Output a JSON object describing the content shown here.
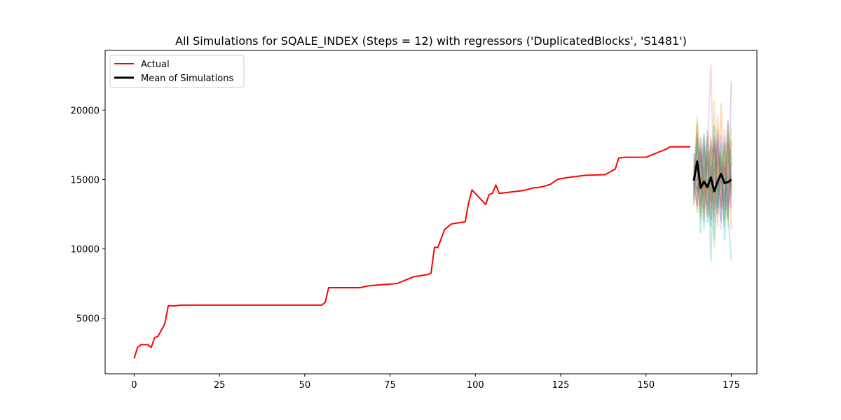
{
  "chart_data": {
    "type": "line",
    "title": "All Simulations for SQALE_INDEX (Steps = 12) with regressors ('DuplicatedBlocks', 'S1481')",
    "xlabel": "",
    "ylabel": "",
    "xlim": [
      -8.5,
      182.5
    ],
    "ylim": [
      1000,
      24300
    ],
    "xticks": [
      0,
      25,
      50,
      75,
      100,
      125,
      150,
      175
    ],
    "yticks": [
      5000,
      10000,
      15000,
      20000
    ],
    "grid": false,
    "legend": {
      "position": "top-left",
      "entries": [
        "Actual",
        "Mean of Simulations"
      ]
    },
    "series": [
      {
        "name": "Actual",
        "color": "#ff0000",
        "x": [
          0,
          1,
          2,
          3,
          4,
          5,
          6,
          7,
          9,
          10,
          12,
          14,
          25,
          55,
          56,
          57,
          63,
          66,
          69,
          77,
          78,
          82,
          86,
          87,
          88,
          89,
          91,
          93,
          97,
          98,
          99,
          103,
          104,
          105,
          106,
          107,
          114,
          117,
          118,
          120,
          122,
          124,
          126,
          132,
          138,
          141,
          142,
          144,
          150,
          155,
          156,
          157,
          163
        ],
        "y": [
          2100,
          2900,
          3100,
          3100,
          3100,
          2900,
          3600,
          3700,
          4600,
          5900,
          5900,
          5950,
          5950,
          5950,
          6150,
          7200,
          7200,
          7200,
          7350,
          7500,
          7600,
          8000,
          8150,
          8250,
          10100,
          10100,
          11400,
          11800,
          11950,
          13300,
          14250,
          13200,
          13900,
          14000,
          14600,
          14000,
          14200,
          14400,
          14400,
          14500,
          14650,
          15000,
          15100,
          15300,
          15350,
          15750,
          16550,
          16600,
          16600,
          17100,
          17200,
          17350,
          17350
        ]
      },
      {
        "name": "Mean of Simulations",
        "color": "#000000",
        "x": [
          164,
          165,
          166,
          167,
          168,
          169,
          170,
          171,
          172,
          173,
          174,
          175
        ],
        "y": [
          14900,
          16300,
          14400,
          14850,
          14450,
          15150,
          14150,
          14850,
          15400,
          14750,
          14800,
          15000
        ]
      }
    ],
    "simulations": {
      "x": [
        164,
        165,
        166,
        167,
        168,
        169,
        170,
        171,
        172,
        173,
        174,
        175
      ],
      "paths": [
        {
          "color": "#1f77b4",
          "values": [
            15200,
            17500,
            13400,
            16100,
            12800,
            15900,
            13300,
            16600,
            14200,
            17700,
            12900,
            15600
          ]
        },
        {
          "color": "#ff7f0e",
          "values": [
            16100,
            13800,
            17600,
            12100,
            18600,
            13400,
            16900,
            11600,
            20500,
            13900,
            17900,
            11400
          ]
        },
        {
          "color": "#2ca02c",
          "values": [
            13600,
            18400,
            12300,
            17500,
            14100,
            12100,
            18100,
            13100,
            16600,
            12800,
            18400,
            13600
          ]
        },
        {
          "color": "#d62728",
          "values": [
            14300,
            16200,
            15100,
            13500,
            17200,
            15800,
            12800,
            17400,
            14600,
            16300,
            14000,
            16800
          ]
        },
        {
          "color": "#9467bd",
          "values": [
            15700,
            14900,
            18100,
            14600,
            13100,
            17900,
            14400,
            12600,
            18200,
            14600,
            15400,
            12900
          ]
        },
        {
          "color": "#8c564b",
          "values": [
            14600,
            17100,
            13100,
            15600,
            16600,
            14100,
            17600,
            15100,
            13100,
            17400,
            13300,
            16200
          ]
        },
        {
          "color": "#e377c2",
          "values": [
            16600,
            13300,
            16400,
            11900,
            17100,
            23300,
            13600,
            18600,
            12100,
            15600,
            19100,
            13100
          ]
        },
        {
          "color": "#7f7f7f",
          "values": [
            13900,
            18900,
            14100,
            17900,
            12400,
            16400,
            11900,
            17100,
            15600,
            13100,
            16600,
            14600
          ]
        },
        {
          "color": "#bcbd22",
          "values": [
            15400,
            12900,
            17900,
            13600,
            18400,
            12600,
            20700,
            13400,
            17100,
            14400,
            11600,
            17600
          ]
        },
        {
          "color": "#17becf",
          "values": [
            14100,
            16600,
            11100,
            16900,
            13900,
            17400,
            10600,
            14900,
            11900,
            18100,
            12600,
            9200
          ]
        },
        {
          "color": "#1f77b4",
          "values": [
            16900,
            14100,
            15600,
            18300,
            15100,
            11600,
            15900,
            17900,
            14900,
            12100,
            16100,
            17100
          ]
        },
        {
          "color": "#ff7f0e",
          "values": [
            13300,
            19100,
            14600,
            12600,
            15900,
            17700,
            13100,
            19600,
            15100,
            16900,
            13100,
            15300
          ]
        },
        {
          "color": "#2ca02c",
          "values": [
            15900,
            15600,
            12600,
            17300,
            11900,
            14600,
            18900,
            14100,
            16900,
            11600,
            19300,
            13900
          ]
        },
        {
          "color": "#d62728",
          "values": [
            14800,
            13100,
            16900,
            13900,
            16300,
            12900,
            15600,
            16400,
            12900,
            15900,
            14900,
            17900
          ]
        },
        {
          "color": "#9467bd",
          "values": [
            15500,
            18100,
            13900,
            15100,
            18100,
            14900,
            12300,
            18300,
            13600,
            16100,
            12300,
            22100
          ]
        },
        {
          "color": "#8c564b",
          "values": [
            14400,
            15100,
            17300,
            12900,
            14600,
            16900,
            17300,
            12900,
            15900,
            13400,
            17600,
            14300
          ]
        },
        {
          "color": "#e377c2",
          "values": [
            16300,
            12600,
            14300,
            17100,
            12300,
            18100,
            14900,
            15600,
            11400,
            18600,
            14300,
            16300
          ]
        },
        {
          "color": "#17becf",
          "values": [
            13100,
            17900,
            16100,
            11400,
            17600,
            9100,
            16300,
            12400,
            17600,
            10600,
            16900,
            14900
          ]
        },
        {
          "color": "#bcbd22",
          "values": [
            15100,
            19600,
            12100,
            16400,
            13600,
            17100,
            10100,
            16600,
            13900,
            17300,
            14600,
            18700
          ]
        },
        {
          "color": "#7f7f7f",
          "values": [
            14700,
            14300,
            17100,
            14300,
            16900,
            13300,
            17900,
            13900,
            16300,
            15100,
            12100,
            16600
          ]
        }
      ]
    }
  }
}
